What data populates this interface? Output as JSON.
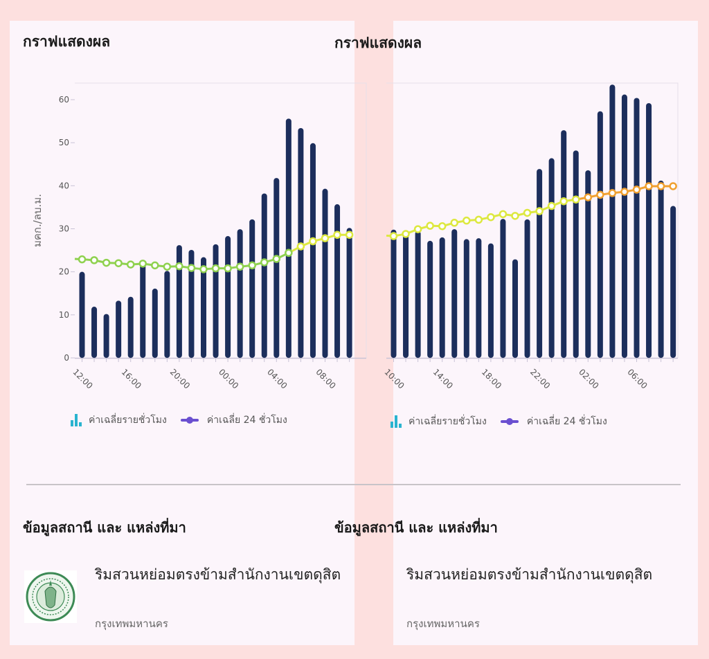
{
  "page": {
    "chart_title": "กราฟแสดงผล",
    "legend": {
      "bar_label": "ค่าเฉลี่ยรายชั่วโมง",
      "line_label": "ค่าเฉลี่ย 24 ชั่วโมง",
      "bar_icon_color": "#29b3cf",
      "line_icon_color": "#6a4fd0"
    },
    "station_section_title": "ข้อมูลสถานี และ แหล่งที่มา",
    "station_name": "ริมสวนหย่อมตรงข้ามสำนักงานเขตดุสิต",
    "station_org": "กรุงเทพมหานคร",
    "logo_icon": "bangkok-seal"
  },
  "colors": {
    "bar": "#1c2e5c",
    "line_good": "#8fd14f",
    "line_moderate": "#dde83f",
    "line_unhealthy": "#f0a030",
    "background": "#fde0df",
    "card": "#fcf5fb"
  },
  "chart_data": [
    {
      "type": "bar+line",
      "ylabel": "มคก./ลบ.ม.",
      "ylim": [
        0,
        64
      ],
      "yticks": [
        0,
        10,
        20,
        30,
        40,
        50,
        60
      ],
      "grid": false,
      "legend_position": "bottom",
      "line_color_thresholds": [
        25,
        37
      ],
      "categories": [
        "12:00",
        "13:00",
        "14:00",
        "15:00",
        "16:00",
        "17:00",
        "18:00",
        "19:00",
        "20:00",
        "21:00",
        "22:00",
        "23:00",
        "00:00",
        "01:00",
        "02:00",
        "03:00",
        "04:00",
        "05:00",
        "06:00",
        "07:00",
        "08:00",
        "09:00",
        "10:00"
      ],
      "xtick_labels": [
        "12:00",
        "16:00",
        "20:00",
        "00:00",
        "04:00",
        "08:00"
      ],
      "series": [
        {
          "name": "ค่าเฉลี่ยรายชั่วโมง",
          "type": "bar",
          "values": [
            20.0,
            11.9,
            10.2,
            13.3,
            14.2,
            22.1,
            16.1,
            20.2,
            26.2,
            25.1,
            23.4,
            26.4,
            28.3,
            29.9,
            32.2,
            38.2,
            41.8,
            55.6,
            53.4,
            49.9,
            39.3,
            35.7,
            30.2
          ]
        },
        {
          "name": "ค่าเฉลี่ย 24 ชั่วโมง",
          "type": "line",
          "values": [
            22.9,
            22.7,
            22.1,
            22.0,
            21.7,
            21.9,
            21.5,
            21.2,
            21.3,
            20.9,
            20.6,
            20.8,
            20.8,
            21.2,
            21.5,
            22.2,
            23.0,
            24.4,
            25.9,
            27.1,
            27.8,
            28.6,
            28.6
          ]
        }
      ]
    },
    {
      "type": "bar+line",
      "ylim": [
        0,
        64
      ],
      "grid": false,
      "legend_position": "bottom",
      "line_color_thresholds": [
        25,
        37
      ],
      "categories": [
        "10:00",
        "11:00",
        "12:00",
        "13:00",
        "14:00",
        "15:00",
        "16:00",
        "17:00",
        "18:00",
        "19:00",
        "20:00",
        "21:00",
        "22:00",
        "23:00",
        "00:00",
        "01:00",
        "02:00",
        "03:00",
        "04:00",
        "05:00",
        "06:00",
        "07:00",
        "08:00",
        "09:00"
      ],
      "xtick_labels": [
        "10:00",
        "14:00",
        "18:00",
        "22:00",
        "02:00",
        "06:00"
      ],
      "series": [
        {
          "name": "ค่าเฉลี่ยรายชั่วโมง",
          "type": "bar",
          "values": [
            29.8,
            29.1,
            29.5,
            27.2,
            28.0,
            29.9,
            27.6,
            27.8,
            26.6,
            32.3,
            22.9,
            32.2,
            43.9,
            46.4,
            52.9,
            48.2,
            43.6,
            57.3,
            63.5,
            61.2,
            60.4,
            59.2,
            41.2,
            35.3
          ]
        },
        {
          "name": "ค่าเฉลี่ย 24 ชั่วโมง",
          "type": "line",
          "values": [
            28.3,
            28.8,
            29.9,
            30.7,
            30.6,
            31.4,
            31.9,
            32.1,
            32.7,
            33.4,
            33.0,
            33.7,
            34.1,
            35.3,
            36.4,
            36.8,
            37.3,
            37.9,
            38.3,
            38.6,
            39.1,
            39.9,
            39.9,
            39.9
          ]
        }
      ]
    }
  ]
}
